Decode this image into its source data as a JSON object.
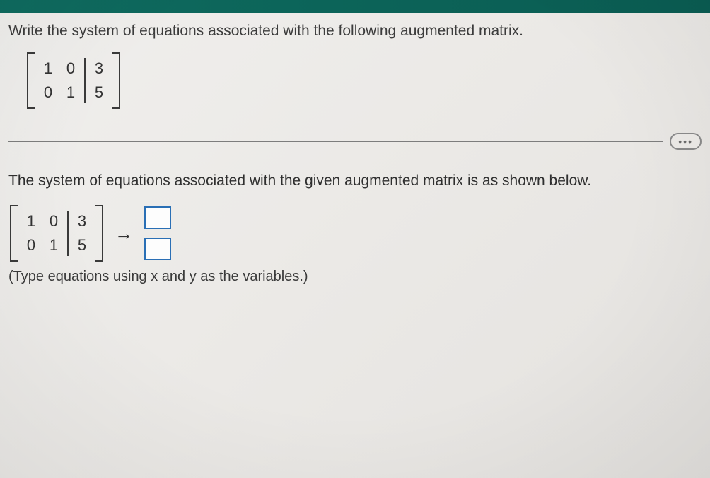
{
  "prompt_text": "Write the system of equations associated with the following augmented matrix.",
  "matrix": {
    "left_cols": [
      [
        "1",
        "0"
      ],
      [
        "0",
        "1"
      ]
    ],
    "aug_col": [
      "3",
      "5"
    ]
  },
  "statement_text": "The system of equations associated with the given augmented matrix is as shown below.",
  "work_matrix": {
    "left_cols": [
      [
        "1",
        "0"
      ],
      [
        "0",
        "1"
      ]
    ],
    "aug_col": [
      "3",
      "5"
    ]
  },
  "arrow_glyph": "→",
  "hint_text": "(Type equations using x and y as the variables.)",
  "dots_label": "•••",
  "colors": {
    "input_border": "#2a6fb5",
    "text": "#3a3a3a",
    "rule": "#7d7d7d",
    "topbar": "#0e6b5f"
  }
}
